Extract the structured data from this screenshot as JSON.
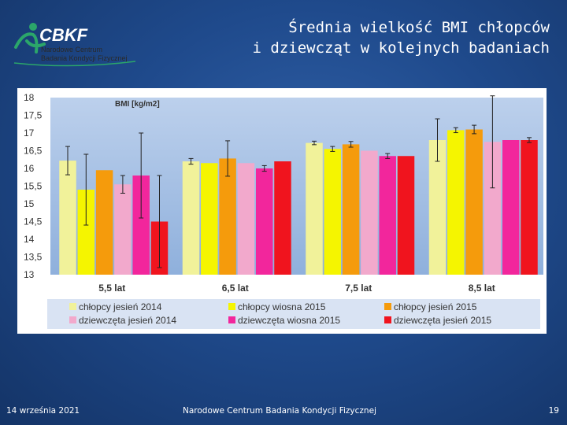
{
  "logo": {
    "brand": "CBKF",
    "line1": "Narodowe Centrum",
    "line2": "Badania Kondycji Fizycznej"
  },
  "title": {
    "line1": "Średnia wielkość BMI chłopców",
    "line2": "i dziewcząt w kolejnych badaniach"
  },
  "footer": {
    "date": "14 września 2021",
    "org": "Narodowe Centrum Badania Kondycji Fizycznej",
    "page": "19"
  },
  "chart_data": {
    "type": "bar",
    "title": "BMI [kg/m2]",
    "categories": [
      "5,5 lat",
      "6,5 lat",
      "7,5 lat",
      "8,5 lat"
    ],
    "ylim": [
      13,
      18
    ],
    "yticks": [
      "13",
      "13,5",
      "14",
      "14,5",
      "15",
      "15,5",
      "16",
      "16,5",
      "17",
      "17,5",
      "18"
    ],
    "series": [
      {
        "name": "chłopcy jesień 2014",
        "color": "#f1f29a",
        "values": [
          16.22,
          16.2,
          16.72,
          16.8
        ],
        "err": [
          0.4,
          0.08,
          0.05,
          0.6
        ]
      },
      {
        "name": "chłopcy wiosna 2015",
        "color": "#f5f500",
        "values": [
          15.4,
          16.15,
          16.55,
          17.08
        ],
        "err": [
          1.0,
          0.0,
          0.07,
          0.07
        ]
      },
      {
        "name": "chłopcy jesień 2015",
        "color": "#f59b0c",
        "values": [
          15.95,
          16.28,
          16.68,
          17.1
        ],
        "err": [
          0.0,
          0.5,
          0.08,
          0.12
        ]
      },
      {
        "name": "dziewczęta jesień 2014",
        "color": "#f2a9cc",
        "values": [
          15.55,
          16.15,
          16.5,
          16.75
        ],
        "err": [
          0.25,
          0.0,
          0.0,
          1.3
        ]
      },
      {
        "name": "dziewczęta wiosna 2015",
        "color": "#f2269c",
        "values": [
          15.8,
          16.0,
          16.35,
          16.8
        ],
        "err": [
          1.2,
          0.08,
          0.07,
          0.0
        ]
      },
      {
        "name": "dziewczęta jesień 2015",
        "color": "#f0141e",
        "values": [
          14.5,
          16.2,
          16.35,
          16.8
        ],
        "err": [
          1.3,
          0.0,
          0.0,
          0.07
        ]
      }
    ]
  }
}
